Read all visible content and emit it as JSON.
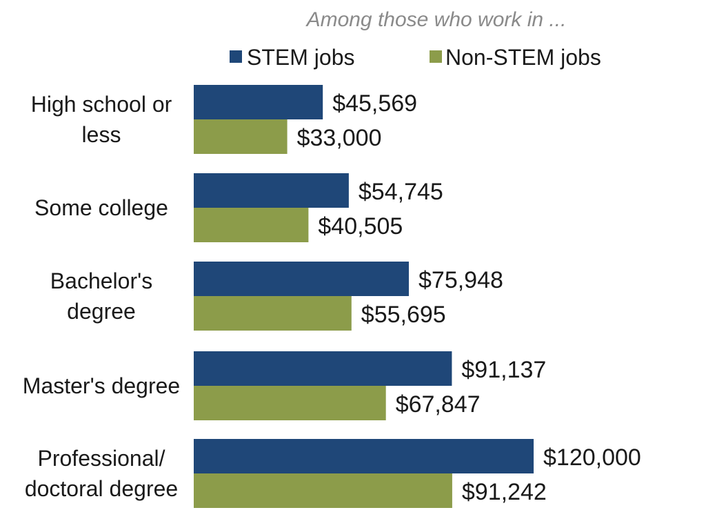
{
  "chart_data": {
    "type": "bar",
    "orientation": "horizontal",
    "subtitle": "Among those who work in ...",
    "categories": [
      [
        "High school or",
        "less"
      ],
      [
        "Some college"
      ],
      [
        "Bachelor's",
        "degree"
      ],
      [
        "Master's degree"
      ],
      [
        "Professional/",
        "doctoral degree"
      ]
    ],
    "series": [
      {
        "name": "STEM jobs",
        "color": "#1f4778",
        "values": [
          45569,
          54745,
          75948,
          91137,
          120000
        ],
        "labels": [
          "$45,569",
          "$54,745",
          "$75,948",
          "$91,137",
          "$120,000"
        ]
      },
      {
        "name": "Non-STEM jobs",
        "color": "#8c9c4a",
        "values": [
          33000,
          40505,
          55695,
          67847,
          91242
        ],
        "labels": [
          "$33,000",
          "$40,505",
          "$55,695",
          "$67,847",
          "$91,242"
        ]
      }
    ],
    "xlim": [
      0,
      120000
    ],
    "grid": false,
    "legend_position": "top"
  }
}
